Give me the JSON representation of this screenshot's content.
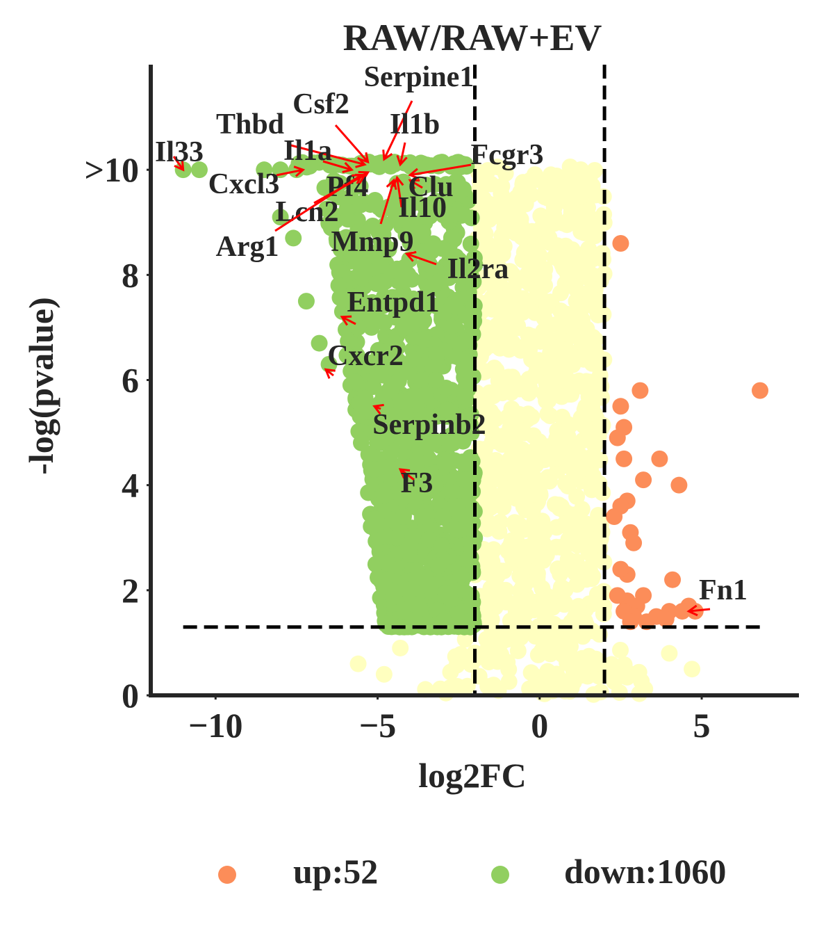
{
  "chart_data": {
    "type": "scatter",
    "title": "RAW/RAW+EV",
    "xlabel": "log2FC",
    "ylabel": "-log(pvalue)",
    "xlim": [
      -12,
      8
    ],
    "ylim": [
      0,
      12
    ],
    "xticks": [
      {
        "value": -10,
        "label": "−10"
      },
      {
        "value": -5,
        "label": "−5"
      },
      {
        "value": 0,
        "label": "0"
      },
      {
        "value": 5,
        "label": "5"
      }
    ],
    "yticks": [
      {
        "value": 0,
        "label": "0"
      },
      {
        "value": 2,
        "label": "2"
      },
      {
        "value": 4,
        "label": "4"
      },
      {
        "value": 6,
        "label": "6"
      },
      {
        "value": 8,
        "label": "8"
      },
      {
        "value": 10,
        "label": ">10"
      }
    ],
    "grid": false,
    "thresholds": {
      "log2fc": [
        -2,
        2
      ],
      "neg_log_p": 1.3
    },
    "colors": {
      "up": "#FC8D59",
      "down": "#91CF60",
      "not_significant": "#FFFFBF",
      "annotation_arrow": "#FF0000",
      "threshold_line": "#000000"
    },
    "legend": {
      "placement": "bottom",
      "entries": [
        {
          "label": "up:52",
          "color": "#FC8D59"
        },
        {
          "label": "down:1060",
          "color": "#91CF60"
        }
      ]
    },
    "series": [
      {
        "group": "up",
        "points": [
          [
            2.5,
            8.6
          ],
          [
            6.8,
            5.8
          ],
          [
            3.1,
            5.8
          ],
          [
            2.5,
            5.5
          ],
          [
            2.6,
            5.1
          ],
          [
            2.4,
            4.9
          ],
          [
            3.7,
            4.5
          ],
          [
            2.6,
            4.5
          ],
          [
            3.2,
            4.1
          ],
          [
            4.3,
            4.0
          ],
          [
            2.7,
            3.7
          ],
          [
            2.5,
            3.6
          ],
          [
            2.3,
            3.4
          ],
          [
            2.8,
            3.1
          ],
          [
            2.9,
            2.9
          ],
          [
            4.1,
            2.2
          ],
          [
            2.7,
            2.3
          ],
          [
            2.5,
            2.4
          ],
          [
            3.2,
            1.9
          ],
          [
            2.7,
            1.8
          ],
          [
            3.0,
            1.7
          ],
          [
            2.6,
            1.6
          ],
          [
            2.9,
            1.5
          ],
          [
            3.6,
            1.5
          ],
          [
            4.0,
            1.6
          ],
          [
            4.6,
            1.7
          ],
          [
            4.4,
            1.6
          ],
          [
            2.8,
            1.4
          ],
          [
            3.3,
            1.4
          ],
          [
            2.4,
            1.9
          ],
          [
            3.9,
            1.45
          ],
          [
            4.8,
            1.6
          ]
        ]
      },
      {
        "group": "down",
        "points": [
          [
            -11.0,
            10.0
          ],
          [
            -10.5,
            10.0
          ],
          [
            -8.5,
            10.0
          ],
          [
            -8.0,
            10.0
          ],
          [
            -7.5,
            10.0
          ],
          [
            -8.0,
            9.1
          ],
          [
            -7.6,
            8.7
          ],
          [
            -7.2,
            7.5
          ],
          [
            -6.8,
            6.7
          ],
          [
            -6.5,
            6.3
          ],
          [
            -6.2,
            7.8
          ],
          [
            -5.8,
            6.4
          ],
          [
            -5.6,
            7.0
          ],
          [
            -5.0,
            6.1
          ],
          [
            -4.9,
            8.2
          ],
          [
            -4.4,
            9.2
          ],
          [
            -4.0,
            9.0
          ],
          [
            -3.6,
            8.8
          ],
          [
            -3.4,
            8.2
          ],
          [
            -3.0,
            8.5
          ],
          [
            -2.8,
            9.5
          ],
          [
            -2.6,
            7.4
          ],
          [
            -2.4,
            6.7
          ],
          [
            -5.3,
            5.4
          ],
          [
            -5.1,
            4.3
          ],
          [
            -4.8,
            3.8
          ],
          [
            -4.2,
            3.4
          ],
          [
            -4.6,
            5.8
          ],
          [
            -3.9,
            6.4
          ],
          [
            -3.2,
            6.0
          ],
          [
            -3.7,
            4.7
          ],
          [
            -2.5,
            5.0
          ],
          [
            -2.3,
            4.1
          ]
        ]
      },
      {
        "group": "annotated",
        "points": [
          {
            "gene": "Il33",
            "x": -11.0,
            "y": 10.0
          },
          {
            "gene": "Thbd",
            "x": -5.4,
            "y": 10.1
          },
          {
            "gene": "Csf2",
            "x": -5.3,
            "y": 10.15
          },
          {
            "gene": "Serpine1",
            "x": -4.8,
            "y": 10.2
          },
          {
            "gene": "Il1b",
            "x": -4.3,
            "y": 10.1
          },
          {
            "gene": "Il1a",
            "x": -5.8,
            "y": 10.0
          },
          {
            "gene": "Fcgr3",
            "x": -4.0,
            "y": 9.9
          },
          {
            "gene": "Cxcl3",
            "x": -7.3,
            "y": 10.0
          },
          {
            "gene": "Pf4",
            "x": -5.3,
            "y": 9.95
          },
          {
            "gene": "Clu",
            "x": -4.0,
            "y": 9.8
          },
          {
            "gene": "Lcn2",
            "x": -5.4,
            "y": 9.9
          },
          {
            "gene": "Il10",
            "x": -4.4,
            "y": 9.85
          },
          {
            "gene": "Arg1",
            "x": -5.5,
            "y": 9.9
          },
          {
            "gene": "Mmp9",
            "x": -4.5,
            "y": 9.8
          },
          {
            "gene": "Il2ra",
            "x": -4.1,
            "y": 8.4
          },
          {
            "gene": "Entpd1",
            "x": -6.1,
            "y": 7.2
          },
          {
            "gene": "Cxcr2",
            "x": -6.6,
            "y": 6.2
          },
          {
            "gene": "Serpinb2",
            "x": -5.1,
            "y": 5.5
          },
          {
            "gene": "F3",
            "x": -4.3,
            "y": 4.3
          },
          {
            "gene": "Fn1",
            "x": 4.6,
            "y": 1.6
          }
        ]
      }
    ]
  }
}
